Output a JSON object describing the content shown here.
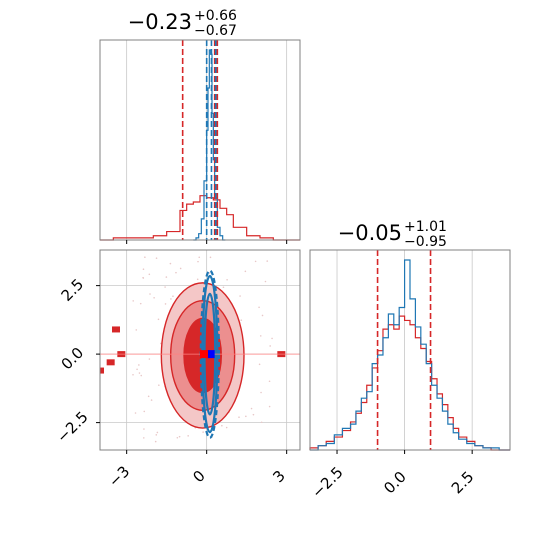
{
  "chart_data": [
    {
      "type": "histogram",
      "panel": "top-left",
      "title_value": "−0.23",
      "title_sup": "+0.66",
      "title_sub": "−0.67",
      "xlim": [
        -4.0,
        3.5
      ],
      "grid": true,
      "x_ticks_shown": false,
      "series": [
        {
          "color": "#d62728",
          "vlines": [
            -0.9,
            0.3,
            0.4
          ],
          "bin_edges": [
            -4.0,
            -3.5,
            -3.0,
            -2.5,
            -2.0,
            -1.5,
            -1.0,
            -0.75,
            -0.5,
            -0.25,
            0.0,
            0.25,
            0.5,
            0.75,
            1.0,
            1.5,
            2.0,
            2.5,
            3.0,
            3.5
          ],
          "counts": [
            0,
            1,
            1,
            1,
            2,
            4,
            14,
            17,
            18,
            21,
            20,
            19,
            15,
            12,
            6,
            2,
            1,
            0,
            0
          ]
        },
        {
          "color": "#1f77b4",
          "vlines": [
            0.0,
            0.18,
            0.34
          ],
          "bin_edges": [
            -0.5,
            -0.4,
            -0.3,
            -0.2,
            -0.1,
            0.0,
            0.05,
            0.1,
            0.15,
            0.2,
            0.25,
            0.3,
            0.4,
            0.5,
            0.6,
            0.7
          ],
          "counts": [
            0,
            1,
            3,
            10,
            28,
            52,
            72,
            90,
            88,
            60,
            38,
            20,
            6,
            2,
            0
          ]
        }
      ]
    },
    {
      "type": "histogram",
      "panel": "bottom-right",
      "title_value": "−0.05",
      "title_sup": "+1.01",
      "title_sub": "−0.95",
      "xlim": [
        -3.5,
        3.9
      ],
      "grid": true,
      "x_ticks": [
        "−2.5",
        "0.0",
        "2.5"
      ],
      "x_tick_values": [
        -2.5,
        0.0,
        2.5
      ],
      "series": [
        {
          "color": "#d62728",
          "vlines": [
            -1.0,
            0.96
          ],
          "bin_edges": [
            -3.5,
            -3.2,
            -2.9,
            -2.6,
            -2.3,
            -2.0,
            -1.8,
            -1.6,
            -1.4,
            -1.2,
            -1.0,
            -0.8,
            -0.6,
            -0.4,
            -0.2,
            0.0,
            0.2,
            0.4,
            0.6,
            0.8,
            1.0,
            1.2,
            1.4,
            1.6,
            1.8,
            2.0,
            2.3,
            2.6,
            2.9,
            3.2,
            3.5,
            3.9
          ],
          "counts": [
            1,
            2,
            4,
            6,
            9,
            13,
            17,
            22,
            30,
            38,
            46,
            56,
            58,
            56,
            62,
            60,
            58,
            52,
            47,
            41,
            33,
            26,
            21,
            15,
            10,
            6,
            4,
            2,
            1,
            0,
            0
          ]
        },
        {
          "color": "#1f77b4",
          "vlines": [],
          "bin_edges": [
            -3.5,
            -3.2,
            -2.9,
            -2.6,
            -2.3,
            -2.0,
            -1.8,
            -1.6,
            -1.4,
            -1.2,
            -1.0,
            -0.8,
            -0.6,
            -0.4,
            -0.2,
            0.0,
            0.2,
            0.4,
            0.6,
            0.8,
            1.0,
            1.2,
            1.4,
            1.6,
            1.8,
            2.0,
            2.3,
            2.6,
            2.9,
            3.2,
            3.5,
            3.9
          ],
          "counts": [
            0,
            2,
            3,
            7,
            10,
            12,
            18,
            24,
            27,
            40,
            44,
            52,
            63,
            58,
            66,
            88,
            70,
            57,
            49,
            40,
            30,
            24,
            18,
            12,
            8,
            5,
            3,
            2,
            1,
            1,
            0
          ]
        }
      ]
    },
    {
      "type": "scatter",
      "panel": "bottom-left",
      "xlim": [
        -4.0,
        3.5
      ],
      "ylim": [
        -3.5,
        3.8
      ],
      "grid": true,
      "x_ticks": [
        "−3",
        "0",
        "3"
      ],
      "x_tick_values": [
        -3,
        0,
        3
      ],
      "y_ticks": [
        "2.5",
        "0.0",
        "−2.5"
      ],
      "y_tick_values": [
        2.5,
        0.0,
        -2.5
      ],
      "series": [
        {
          "color": "#d62728",
          "contour_levels": [
            {
              "cx": -0.15,
              "cy": -0.05,
              "rx": 0.7,
              "ry": 1.35,
              "fill": "#d62728",
              "opacity": 1.0
            },
            {
              "cx": -0.15,
              "cy": -0.05,
              "rx": 1.2,
              "ry": 2.0,
              "fill": "#ec8f8f",
              "opacity": 1.0
            },
            {
              "cx": -0.15,
              "cy": -0.05,
              "rx": 1.55,
              "ry": 2.65,
              "fill": "#f4c7c7",
              "opacity": 1.0
            }
          ],
          "outliers": [
            [
              -3.2,
              0.0
            ],
            [
              2.8,
              0.0
            ],
            [
              -4.0,
              -0.6
            ],
            [
              -3.6,
              -0.3
            ],
            [
              -3.4,
              0.9
            ]
          ]
        },
        {
          "color": "#1f77b4",
          "contour_levels": [
            {
              "cx": 0.12,
              "cy": 0.0,
              "rx": 0.2,
              "ry": 2.2
            },
            {
              "cx": 0.12,
              "cy": 0.0,
              "rx": 0.28,
              "ry": 2.85
            },
            {
              "cx": 0.12,
              "cy": 0.0,
              "rx": 0.34,
              "ry": 3.05
            }
          ]
        }
      ],
      "markers": [
        {
          "x": 0.15,
          "y": 0.0,
          "color": "#0000ff"
        },
        {
          "x": -0.1,
          "y": 0.0,
          "color": "#ff0000"
        }
      ]
    }
  ]
}
